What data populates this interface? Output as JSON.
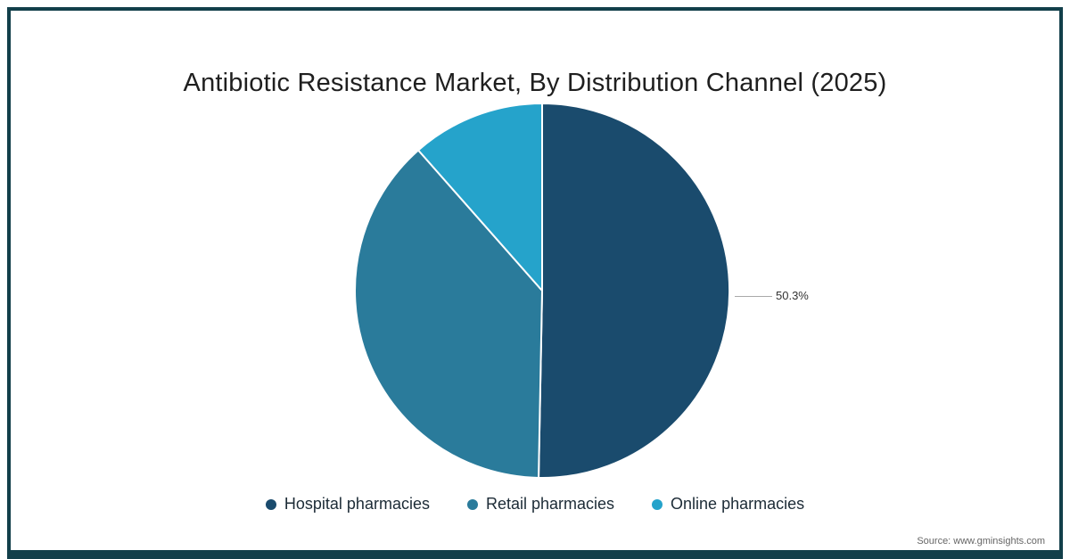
{
  "title": "Antibiotic Resistance Market, By Distribution Channel (2025)",
  "source": "Source: www.gminsights.com",
  "frame_color": "#123f4a",
  "chart_data": {
    "type": "pie",
    "title": "Antibiotic Resistance Market, By Distribution Channel (2025)",
    "start_angle_deg": 0,
    "direction": "clockwise",
    "legend_position": "bottom",
    "series": [
      {
        "name": "Hospital pharmacies",
        "value": 50.3,
        "color": "#1a4b6d",
        "label": "50.3%"
      },
      {
        "name": "Retail pharmacies",
        "value": 38.2,
        "color": "#2a7b9b",
        "label": ""
      },
      {
        "name": "Online pharmacies",
        "value": 11.5,
        "color": "#25a3cb",
        "label": ""
      }
    ],
    "shown_data_labels": [
      "50.3%"
    ]
  }
}
